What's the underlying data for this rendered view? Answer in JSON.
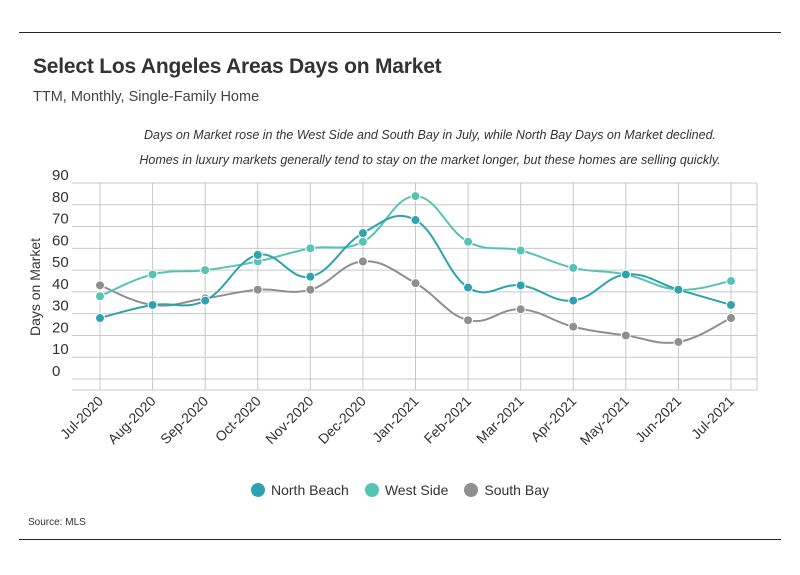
{
  "header": {
    "title": "Select Los Angeles Areas Days on Market",
    "subtitle": "TTM, Monthly, Single-Family Home"
  },
  "annotation": {
    "line1": "Days on Market rose in the West Side and South Bay in July, while North Bay Days on Market declined.",
    "line2": "Homes in luxury markets generally tend to stay on the market longer, but these homes are selling quickly."
  },
  "footer": {
    "source": "Source:  MLS"
  },
  "colors": {
    "north_beach": "#2ea2ae",
    "west_side": "#57c4b3",
    "south_bay": "#8f8f8f",
    "grid": "#c8c8c8"
  },
  "chart_data": {
    "type": "line",
    "title": "Select Los Angeles Areas Days on Market",
    "subtitle": "TTM, Monthly, Single-Family Home",
    "xlabel": "",
    "ylabel": "Days on Market",
    "ylim": [
      0,
      90
    ],
    "yticks": [
      0,
      10,
      20,
      30,
      40,
      50,
      60,
      70,
      80,
      90
    ],
    "grid": true,
    "legend_position": "bottom",
    "categories": [
      "Jul-2020",
      "Aug-2020",
      "Sep-2020",
      "Oct-2020",
      "Nov-2020",
      "Dec-2020",
      "Jan-2021",
      "Feb-2021",
      "Mar-2021",
      "Apr-2021",
      "May-2021",
      "Jun-2021",
      "Jul-2021"
    ],
    "series": [
      {
        "name": "North Beach",
        "color": "#2ea2ae",
        "values": [
          28,
          34,
          36,
          57,
          47,
          67,
          73,
          42,
          43,
          36,
          48,
          41,
          34
        ]
      },
      {
        "name": "West Side",
        "color": "#57c4b3",
        "values": [
          38,
          48,
          50,
          54,
          60,
          63,
          84,
          63,
          59,
          51,
          48,
          41,
          45
        ]
      },
      {
        "name": "South Bay",
        "color": "#8f8f8f",
        "values": [
          43,
          34,
          37,
          41,
          41,
          54,
          44,
          27,
          32,
          24,
          20,
          17,
          28
        ]
      }
    ]
  }
}
